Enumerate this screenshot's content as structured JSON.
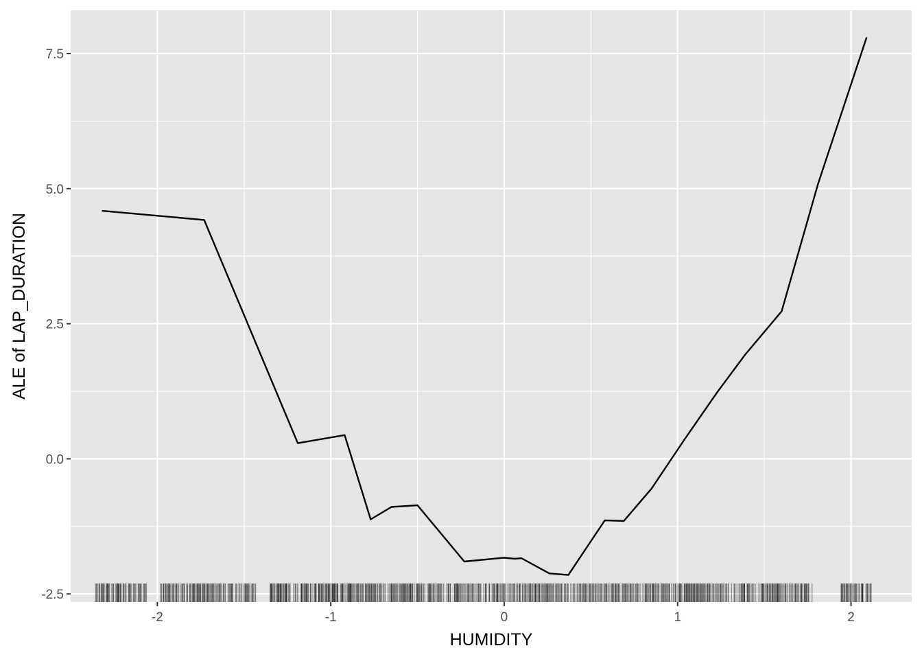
{
  "chart_data": {
    "type": "line",
    "title": "",
    "xlabel": "HUMIDITY",
    "ylabel": "ALE of LAP_DURATION",
    "xlim": [
      -2.5,
      2.35
    ],
    "ylim": [
      -2.65,
      8.3
    ],
    "x_ticks": [
      -2,
      -1,
      0,
      1,
      2
    ],
    "x_tick_labels": [
      "-2",
      "-1",
      "0",
      "1",
      "2"
    ],
    "y_ticks": [
      -2.5,
      0.0,
      2.5,
      5.0,
      7.5
    ],
    "y_tick_labels": [
      "-2.5",
      "0.0",
      "2.5",
      "5.0",
      "7.5"
    ],
    "grid": true,
    "series": [
      {
        "name": "",
        "x": [
          -2.32,
          -1.73,
          -1.19,
          -0.92,
          -0.77,
          -0.65,
          -0.5,
          -0.23,
          0.0,
          0.06,
          0.1,
          0.26,
          0.37,
          0.58,
          0.69,
          0.85,
          1.04,
          1.23,
          1.39,
          1.6,
          1.81,
          2.09
        ],
        "y": [
          4.59,
          4.42,
          0.29,
          0.44,
          -1.12,
          -0.89,
          -0.86,
          -1.9,
          -1.83,
          -1.85,
          -1.84,
          -2.12,
          -2.15,
          -1.14,
          -1.15,
          -0.55,
          0.36,
          1.24,
          1.93,
          2.73,
          5.09,
          7.8
        ]
      }
    ],
    "rug_segments": [
      [
        -2.36,
        -2.06
      ],
      [
        -1.98,
        -1.43
      ],
      [
        -1.35,
        1.78
      ],
      [
        1.94,
        2.12
      ]
    ],
    "line_color": "#000000",
    "panel_color": "#e5e5e5",
    "grid_color": "#ffffff"
  }
}
